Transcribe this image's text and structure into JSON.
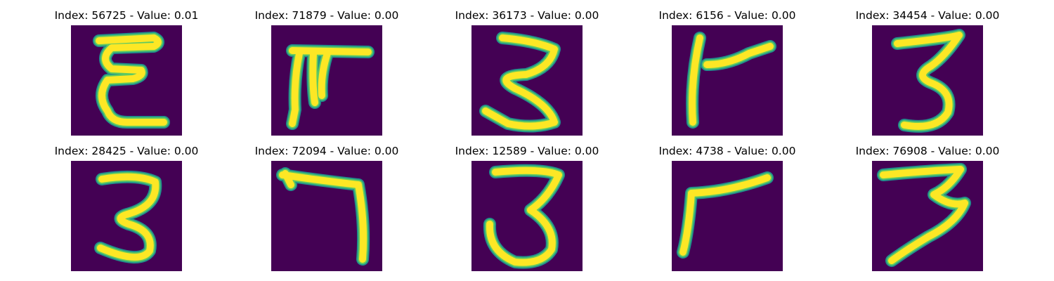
{
  "colors": {
    "background": "#440154",
    "stroke_outer": "#21918c",
    "stroke_mid": "#5ec962",
    "stroke_core": "#fde725"
  },
  "panels": [
    {
      "title": "Index: 56725 - Value: 0.01",
      "glyph": "E-like digit"
    },
    {
      "title": "Index: 71879 - Value: 0.00",
      "glyph": "abstract strokes"
    },
    {
      "title": "Index: 36173 - Value: 0.00",
      "glyph": "3"
    },
    {
      "title": "Index: 6156 - Value: 0.00",
      "glyph": "tilted 4"
    },
    {
      "title": "Index: 34454 - Value: 0.00",
      "glyph": "3"
    },
    {
      "title": "Index: 28425 - Value: 0.00",
      "glyph": "3"
    },
    {
      "title": "Index: 72094 - Value: 0.00",
      "glyph": "7-like hook"
    },
    {
      "title": "Index: 12589 - Value: 0.00",
      "glyph": "3"
    },
    {
      "title": "Index: 4738 - Value: 0.00",
      "glyph": "tilted 4"
    },
    {
      "title": "Index: 76908 - Value: 0.00",
      "glyph": "3"
    }
  ]
}
